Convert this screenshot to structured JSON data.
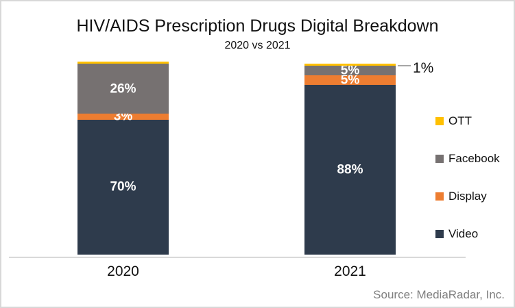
{
  "chart_data": {
    "type": "bar",
    "stacked": true,
    "title": "HIV/AIDS Prescription Drugs Digital Breakdown",
    "subtitle": "2020 vs 2021",
    "categories": [
      "2020",
      "2021"
    ],
    "series": [
      {
        "name": "Video",
        "color": "#2E3B4C",
        "values": [
          70,
          88
        ],
        "data_labels": [
          "70%",
          "88%"
        ]
      },
      {
        "name": "Display",
        "color": "#ED7D31",
        "values": [
          3,
          5
        ],
        "data_labels": [
          "3%",
          "5%"
        ]
      },
      {
        "name": "Facebook",
        "color": "#767171",
        "values": [
          26,
          5
        ],
        "data_labels": [
          "26%",
          "5%"
        ]
      },
      {
        "name": "OTT",
        "color": "#FFC000",
        "values": [
          1,
          1
        ],
        "data_labels": [
          "",
          ""
        ]
      }
    ],
    "annotation": {
      "text": "1%",
      "category": "2021",
      "series": "OTT"
    },
    "legend": {
      "position": "right",
      "items_top_to_bottom": [
        "OTT",
        "Facebook",
        "Display",
        "Video"
      ]
    },
    "ylim": [
      0,
      100
    ],
    "grid": false,
    "axis_color": "#D9D9D9",
    "source": "Source: MediaRadar, Inc."
  }
}
